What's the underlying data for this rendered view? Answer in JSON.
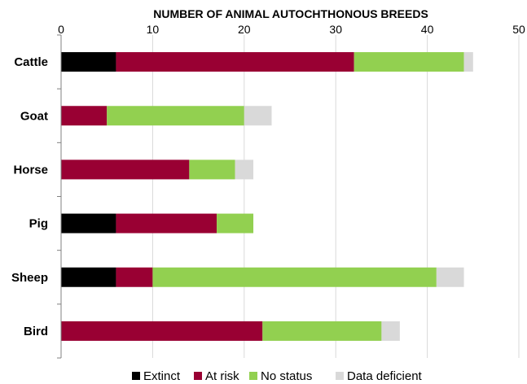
{
  "chart_data": {
    "type": "bar",
    "orientation": "horizontal",
    "stacked": true,
    "title": "NUMBER OF ANIMAL AUTOCHTHONOUS BREEDS",
    "xlabel": "",
    "ylabel": "",
    "xlim": [
      0,
      50
    ],
    "xticks": [
      0,
      10,
      20,
      30,
      40,
      50
    ],
    "x_axis_position": "top",
    "grid": true,
    "legend_position": "bottom",
    "categories": [
      "Cattle",
      "Goat",
      "Horse",
      "Pig",
      "Sheep",
      "Bird"
    ],
    "series": [
      {
        "name": "Extinct",
        "color": "#000000",
        "values": [
          6,
          0,
          0,
          6,
          6,
          0
        ]
      },
      {
        "name": "At risk",
        "color": "#990033",
        "values": [
          26,
          5,
          14,
          11,
          4,
          22
        ]
      },
      {
        "name": "No status",
        "color": "#92d050",
        "values": [
          12,
          15,
          5,
          4,
          31,
          13
        ]
      },
      {
        "name": "Data deficient",
        "color": "#d9d9d9",
        "values": [
          1,
          3,
          2,
          0,
          3,
          2
        ]
      }
    ]
  }
}
